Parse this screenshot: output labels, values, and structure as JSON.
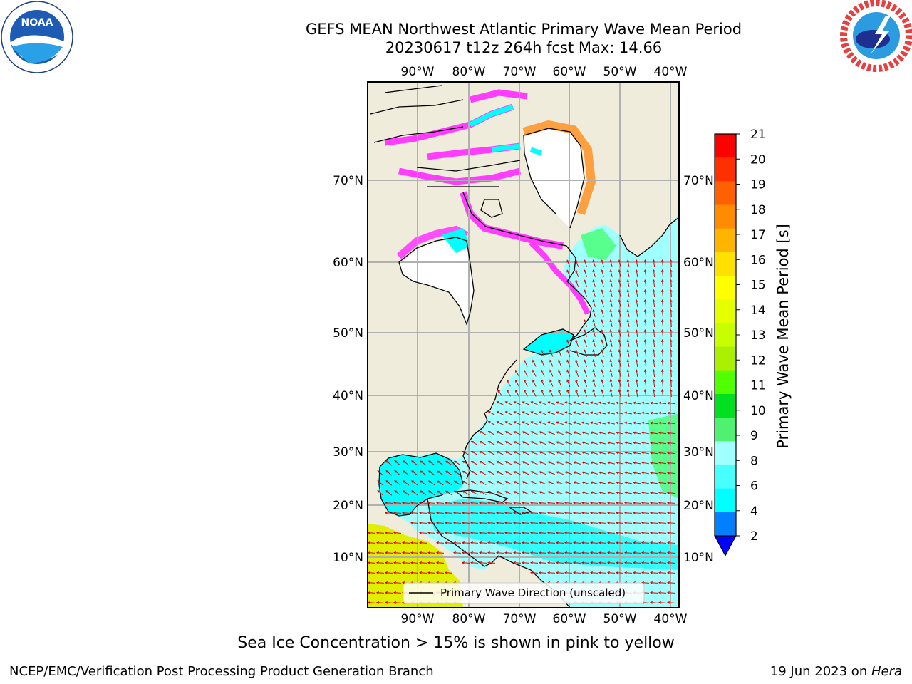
{
  "header": {
    "title_line1": "GEFS MEAN Northwest Atlantic Primary Wave Mean Period",
    "title_line2": "20230617 t12z 264h fcst   Max: 14.66"
  },
  "logos": {
    "noaa_text": "NOAA",
    "noaa_ring_text": "NATIONAL OCEANIC AND ATMOSPHERIC ADMINISTRATION · U.S. DEPARTMENT OF COMMERCE",
    "nws_ring_text": "NATIONAL WEATHER SERVICE"
  },
  "map": {
    "lon_labels": [
      "90°W",
      "80°W",
      "70°W",
      "60°W",
      "50°W",
      "40°W"
    ],
    "lat_labels": [
      "70°N",
      "60°N",
      "50°N",
      "40°N",
      "30°N",
      "20°N",
      "10°N"
    ],
    "legend_label": "Primary Wave Direction (unscaled)",
    "colors": {
      "land": "#efecdc",
      "ocean_low": "#00ffff",
      "ocean_mid": "#a0ffff",
      "ocean_high": "#58ff8c",
      "ice_pink": "#ff3cff",
      "ice_orange": "#ffa040",
      "arrow": "#e00000",
      "tropical_yellow": "#e0ee00"
    }
  },
  "colorbar": {
    "label": "Primary Wave Mean Period [s]",
    "ticks": [
      "21",
      "20",
      "19",
      "18",
      "17",
      "16",
      "15",
      "14",
      "13",
      "12",
      "11",
      "10",
      "9",
      "8",
      "6",
      "4",
      "2"
    ],
    "colors": [
      "#ff0000",
      "#ff3000",
      "#ff6000",
      "#ff8c00",
      "#ffb400",
      "#ffe000",
      "#ffff00",
      "#e6ff00",
      "#c8ff00",
      "#aaf000",
      "#50ff00",
      "#00e020",
      "#50f070",
      "#a0ffff",
      "#48ffff",
      "#00ffff",
      "#0080ff"
    ],
    "extend_color": "#0000ff"
  },
  "caption": "Sea Ice Concentration > 15% is shown in pink to yellow",
  "footer": {
    "left": "NCEP/EMC/Verification Post Processing Product Generation Branch",
    "right_prefix": "19 Jun 2023 on ",
    "right_host": "Hera"
  }
}
